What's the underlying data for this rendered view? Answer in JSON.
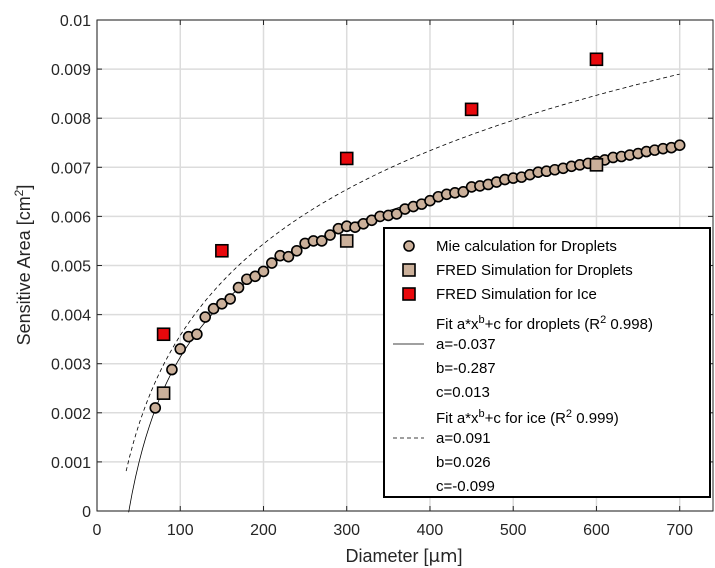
{
  "chart_data": {
    "type": "scatter",
    "xlabel_main": "Diameter [",
    "xlabel_unit": "μm",
    "xlabel_close": "]",
    "ylabel_main": "Sensitive Area [cm",
    "ylabel_sup": "2",
    "ylabel_close": "]",
    "xlim": [
      0,
      740
    ],
    "ylim": [
      0,
      0.01
    ],
    "xticks": [
      0,
      100,
      200,
      300,
      400,
      500,
      600,
      700
    ],
    "yticks": [
      "0",
      "0.001",
      "0.002",
      "0.003",
      "0.004",
      "0.005",
      "0.006",
      "0.007",
      "0.008",
      "0.009",
      "0.01"
    ],
    "grid": true,
    "legend_position": "bottom-right",
    "series": [
      {
        "name": "Mie calculation for Droplets",
        "marker": "circle",
        "color": "#cbb09a",
        "x": [
          70,
          80,
          90,
          100,
          110,
          120,
          130,
          140,
          150,
          160,
          170,
          180,
          190,
          200,
          210,
          220,
          230,
          240,
          250,
          260,
          270,
          280,
          290,
          300,
          310,
          320,
          330,
          340,
          350,
          360,
          370,
          380,
          390,
          400,
          410,
          420,
          430,
          440,
          450,
          460,
          470,
          480,
          490,
          500,
          510,
          520,
          530,
          540,
          550,
          560,
          570,
          580,
          590,
          600,
          610,
          620,
          630,
          640,
          650,
          660,
          670,
          680,
          690,
          700
        ],
        "y": [
          0.0021,
          0.0024,
          0.00288,
          0.0033,
          0.00355,
          0.0036,
          0.00395,
          0.00412,
          0.00422,
          0.00432,
          0.00455,
          0.00472,
          0.00478,
          0.00488,
          0.00505,
          0.0052,
          0.00518,
          0.0053,
          0.00545,
          0.0055,
          0.0055,
          0.00562,
          0.00575,
          0.0058,
          0.00578,
          0.00585,
          0.00592,
          0.006,
          0.00602,
          0.00605,
          0.00615,
          0.0062,
          0.00625,
          0.00632,
          0.0064,
          0.00645,
          0.00648,
          0.0065,
          0.0066,
          0.00662,
          0.00665,
          0.0067,
          0.00675,
          0.00678,
          0.0068,
          0.00685,
          0.0069,
          0.00692,
          0.00695,
          0.00698,
          0.00702,
          0.00705,
          0.00708,
          0.00712,
          0.00715,
          0.0072,
          0.00722,
          0.00725,
          0.00728,
          0.00732,
          0.00735,
          0.00738,
          0.0074,
          0.00745
        ]
      },
      {
        "name": "FRED Simulation for Droplets",
        "marker": "square",
        "color": "#cbb09a",
        "x": [
          80,
          300,
          600
        ],
        "y": [
          0.0024,
          0.0055,
          0.00705
        ]
      },
      {
        "name": "FRED Simulation for Ice",
        "marker": "square",
        "color": "#e8080c",
        "x": [
          80,
          150,
          300,
          450,
          600
        ],
        "y": [
          0.0036,
          0.0053,
          0.00718,
          0.00818,
          0.0092
        ]
      },
      {
        "name_prefix": "Fit a*x",
        "name_sup": "b",
        "name_mid": "+c for droplets (R",
        "name_sup2": "2",
        "name_suffix": " 0.998)",
        "line": "solid",
        "params": {
          "a": -0.037,
          "b": -0.287,
          "c": 0.013
        },
        "x_range": [
          38,
          700
        ],
        "param_lines": [
          "a=-0.037",
          "b=-0.287",
          "c=0.013"
        ]
      },
      {
        "name_prefix": "Fit a*x",
        "name_sup": "b",
        "name_mid": "+c for ice (R",
        "name_sup2": "2",
        "name_suffix": " 0.999)",
        "line": "dashed",
        "params": {
          "a": 0.091,
          "b": 0.026,
          "c": -0.099
        },
        "x_range": [
          35,
          700
        ],
        "param_lines": [
          "a=0.091",
          "b=0.026",
          "c=-0.099"
        ]
      }
    ]
  }
}
